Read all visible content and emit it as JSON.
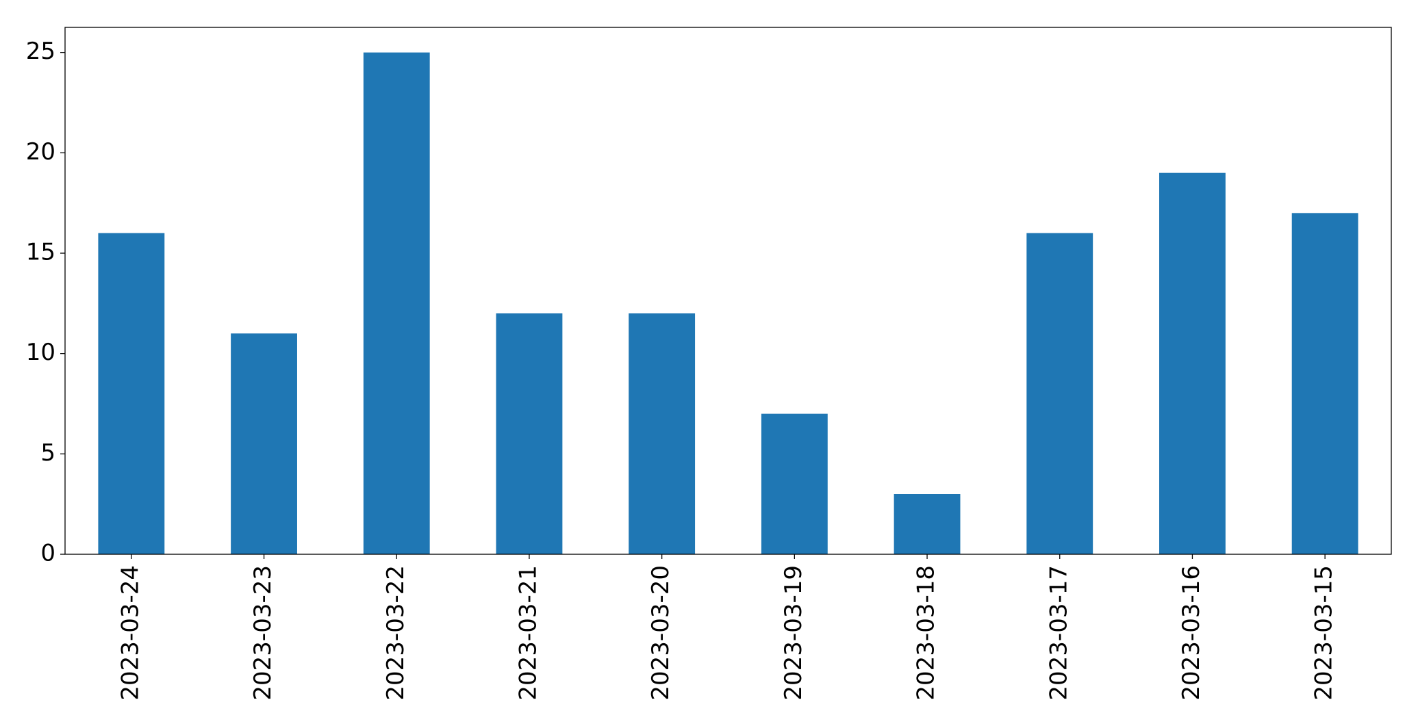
{
  "chart_data": {
    "type": "bar",
    "categories": [
      "2023-03-24",
      "2023-03-23",
      "2023-03-22",
      "2023-03-21",
      "2023-03-20",
      "2023-03-19",
      "2023-03-18",
      "2023-03-17",
      "2023-03-16",
      "2023-03-15"
    ],
    "values": [
      16,
      11,
      25,
      12,
      12,
      7,
      3,
      16,
      19,
      17
    ],
    "color": "#1f77b4",
    "ylim": [
      0,
      26.25
    ],
    "yticks": [
      0,
      5,
      10,
      15,
      20,
      25
    ],
    "grid": false
  }
}
